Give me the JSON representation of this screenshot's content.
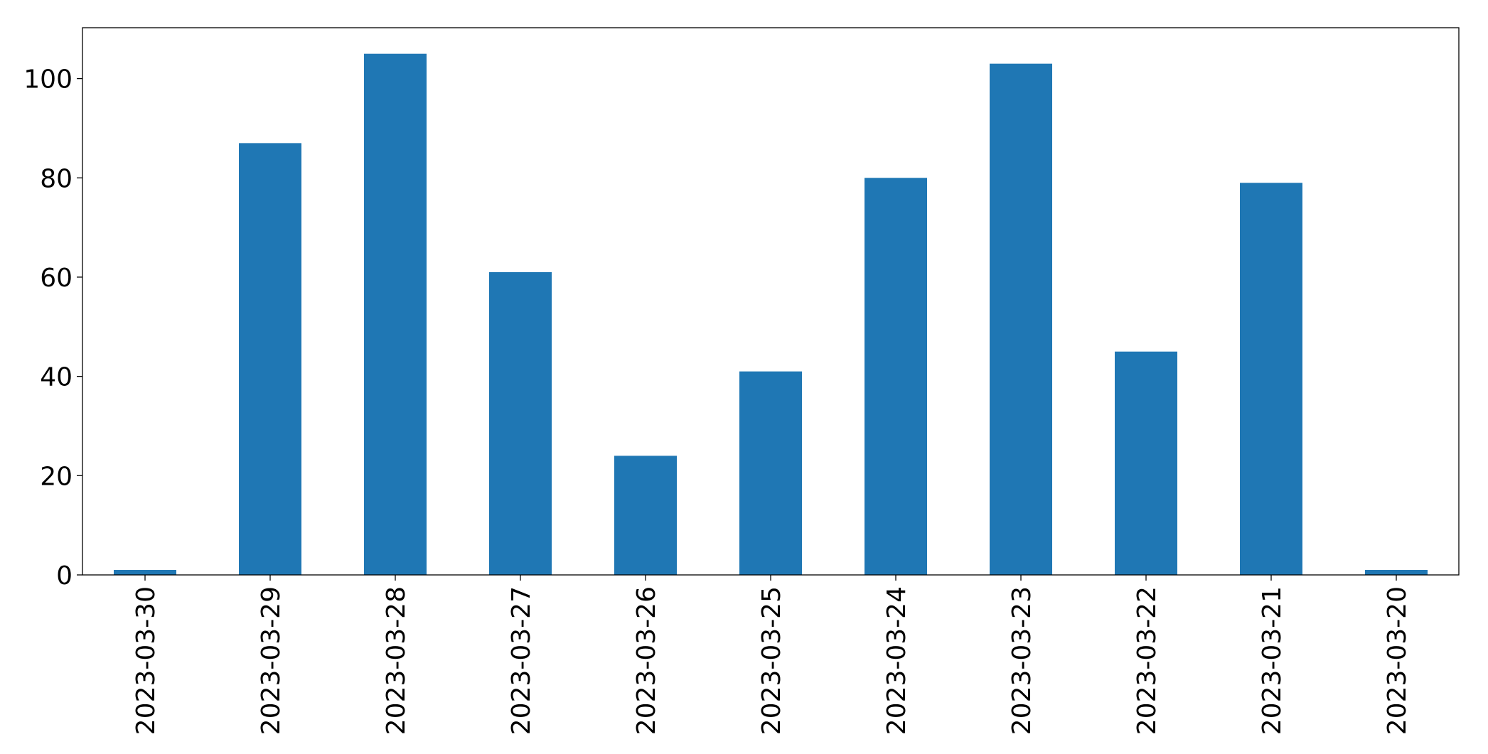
{
  "chart_data": {
    "type": "bar",
    "categories": [
      "2023-03-30",
      "2023-03-29",
      "2023-03-28",
      "2023-03-27",
      "2023-03-26",
      "2023-03-25",
      "2023-03-24",
      "2023-03-23",
      "2023-03-22",
      "2023-03-21",
      "2023-03-20"
    ],
    "values": [
      1,
      87,
      105,
      61,
      24,
      41,
      80,
      103,
      45,
      79,
      1
    ],
    "color": "#1f77b4",
    "ylim": [
      0,
      110.25
    ],
    "yticks": [
      0,
      20,
      40,
      60,
      80,
      100
    ],
    "grid": false
  }
}
